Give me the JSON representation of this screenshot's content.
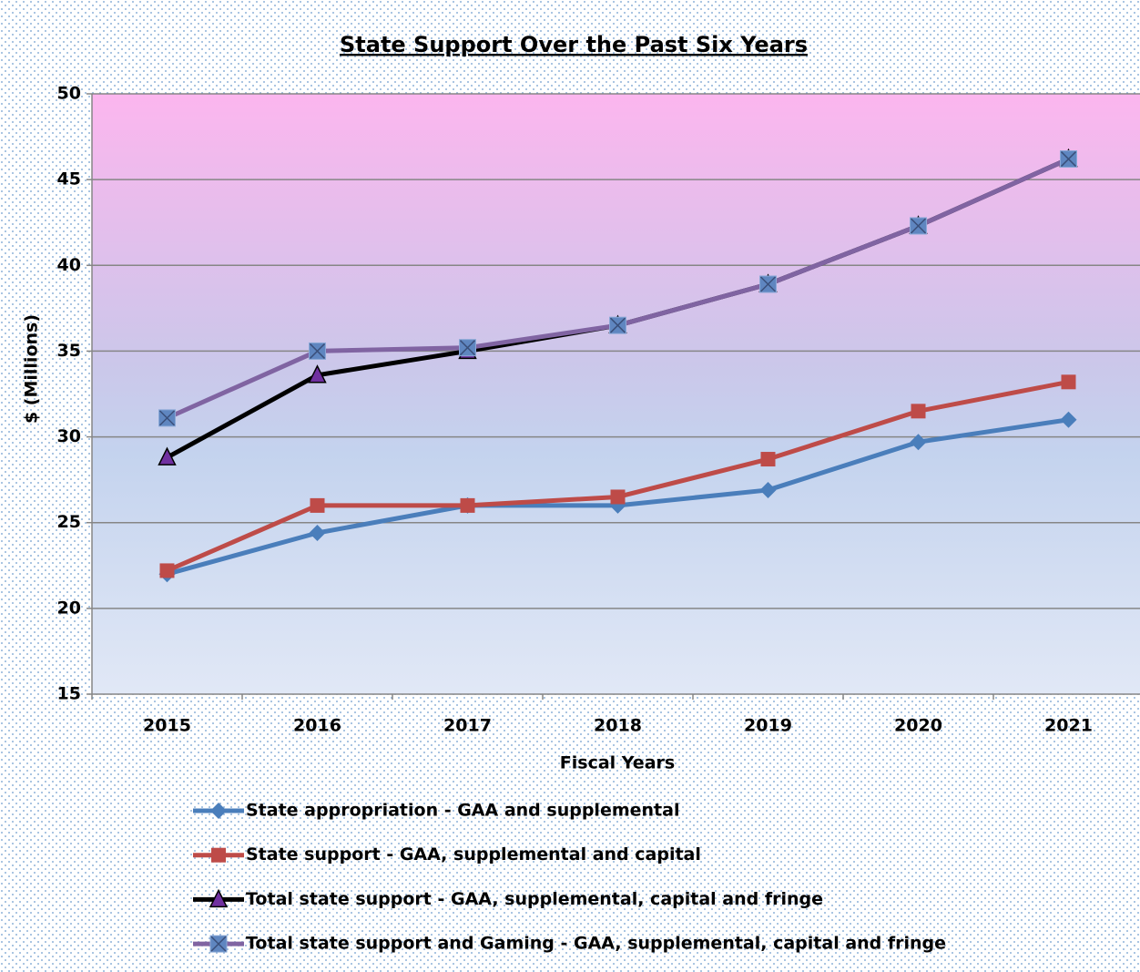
{
  "chart_data": {
    "type": "line",
    "title": "State Support Over the Past Six Years",
    "x_label": "Fiscal Years",
    "y_label": "$ (Millions)",
    "categories": [
      "2015",
      "2016",
      "2017",
      "2018",
      "2019",
      "2020",
      "2021"
    ],
    "ylim": [
      15,
      50
    ],
    "yticks": [
      15,
      20,
      25,
      30,
      35,
      40,
      45,
      50
    ],
    "grid": true,
    "legend": "bottom",
    "series": [
      {
        "name": "State appropriation - GAA and supplemental",
        "color": "#4a7ebb",
        "marker": "diamond",
        "marker_color": "#4a7ebb",
        "values": [
          22.0,
          24.4,
          26.0,
          26.0,
          26.9,
          29.7,
          31.0
        ]
      },
      {
        "name": "State support - GAA, supplemental and capital",
        "color": "#be4b48",
        "marker": "square",
        "marker_color": "#be4b48",
        "values": [
          22.2,
          26.0,
          26.0,
          26.5,
          28.7,
          31.5,
          33.2
        ]
      },
      {
        "name": "Total state support - GAA, supplemental, capital and fringe",
        "color": "#000000",
        "marker": "triangle",
        "marker_color": "#7030a0",
        "values": [
          28.8,
          33.6,
          35.0,
          36.5,
          38.9,
          42.3,
          46.2
        ]
      },
      {
        "name": "Total state support and Gaming - GAA, supplemental, capital and fringe",
        "color": "#8064a2",
        "marker": "xsquare",
        "marker_color": "#5f86c0",
        "values": [
          31.1,
          35.0,
          35.2,
          36.5,
          38.9,
          42.3,
          46.2
        ]
      }
    ]
  }
}
